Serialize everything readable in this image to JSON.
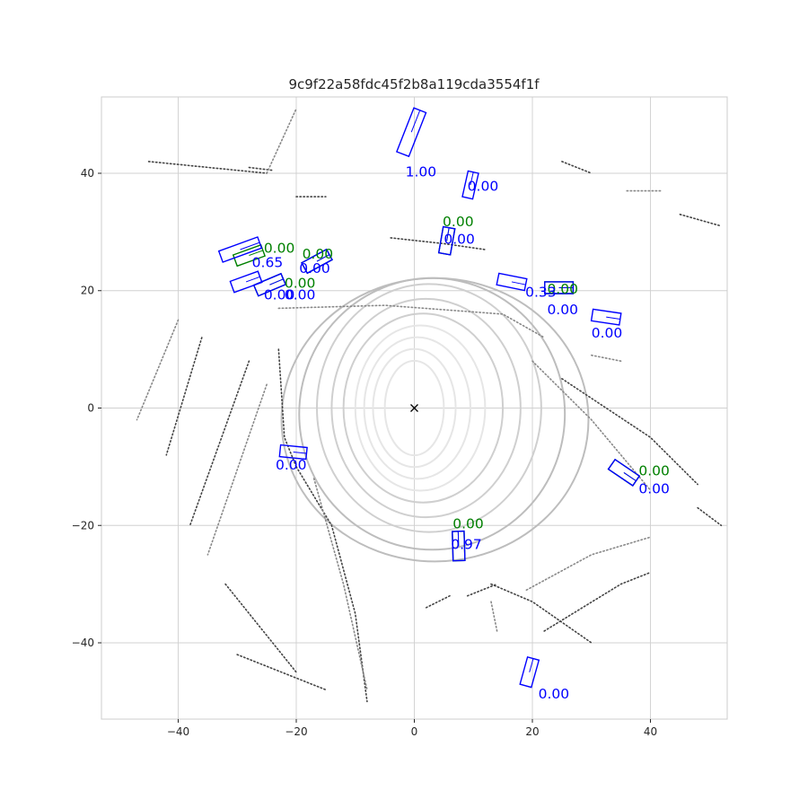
{
  "chart_data": {
    "type": "scatter",
    "title": "9c9f22a58fdc45f2b8a119cda3554f1f",
    "xlabel": "",
    "ylabel": "",
    "xlim": [
      -53,
      53
    ],
    "ylim": [
      -53,
      53
    ],
    "x_ticks": [
      -40,
      -20,
      0,
      20,
      40
    ],
    "y_ticks": [
      -40,
      -20,
      0,
      20,
      40
    ],
    "x_tick_labels": [
      "−40",
      "−20",
      "0",
      "20",
      "40"
    ],
    "y_tick_labels": [
      "−40",
      "−20",
      "0",
      "20",
      "40"
    ],
    "grid": true,
    "ego_marker": {
      "x": 0,
      "y": 0,
      "symbol": "×"
    },
    "colors": {
      "ground_truth": "#008000",
      "prediction": "#0000ff",
      "grid": "#d0d0d0",
      "points": "#333333"
    },
    "ground_truth_boxes": [
      {
        "cx": -28.0,
        "cy": 26.0,
        "w": 2.0,
        "l": 5.0,
        "yaw": 0.35
      },
      {
        "cx": -16.5,
        "cy": 25.0,
        "w": 2.0,
        "l": 4.8,
        "yaw": 0.5
      },
      {
        "cx": -24.5,
        "cy": 21.0,
        "w": 2.0,
        "l": 5.0,
        "yaw": 0.4
      },
      {
        "cx": 5.5,
        "cy": 28.5,
        "w": 2.0,
        "l": 4.5,
        "yaw": 1.4
      },
      {
        "cx": 24.5,
        "cy": 20.5,
        "w": 2.0,
        "l": 4.8,
        "yaw": 0.0
      },
      {
        "cx": 35.5,
        "cy": -11.0,
        "w": 2.0,
        "l": 5.0,
        "yaw": -0.6
      },
      {
        "cx": 7.5,
        "cy": -23.5,
        "w": 2.0,
        "l": 5.0,
        "yaw": 1.6
      }
    ],
    "predicted_boxes": [
      {
        "cx": -0.5,
        "cy": 47.0,
        "w": 2.2,
        "l": 8.0,
        "yaw": 1.2
      },
      {
        "cx": 9.5,
        "cy": 38.0,
        "w": 1.8,
        "l": 4.5,
        "yaw": 1.35
      },
      {
        "cx": -29.5,
        "cy": 27.0,
        "w": 2.0,
        "l": 7.0,
        "yaw": 0.35
      },
      {
        "cx": -16.5,
        "cy": 25.0,
        "w": 2.0,
        "l": 4.8,
        "yaw": 0.5
      },
      {
        "cx": -28.5,
        "cy": 21.5,
        "w": 2.0,
        "l": 5.0,
        "yaw": 0.35
      },
      {
        "cx": -24.5,
        "cy": 21.0,
        "w": 2.0,
        "l": 5.0,
        "yaw": 0.4
      },
      {
        "cx": 5.5,
        "cy": 28.5,
        "w": 2.0,
        "l": 4.5,
        "yaw": 1.4
      },
      {
        "cx": 16.5,
        "cy": 21.5,
        "w": 2.0,
        "l": 4.8,
        "yaw": -0.2
      },
      {
        "cx": 24.5,
        "cy": 20.5,
        "w": 2.0,
        "l": 4.8,
        "yaw": 0.0
      },
      {
        "cx": 32.5,
        "cy": 15.5,
        "w": 2.0,
        "l": 4.8,
        "yaw": -0.15
      },
      {
        "cx": -20.5,
        "cy": -7.5,
        "w": 2.0,
        "l": 4.5,
        "yaw": -0.1
      },
      {
        "cx": 35.5,
        "cy": -11.0,
        "w": 2.0,
        "l": 5.0,
        "yaw": -0.6
      },
      {
        "cx": 7.5,
        "cy": -23.5,
        "w": 2.0,
        "l": 5.0,
        "yaw": 1.6
      },
      {
        "cx": 19.5,
        "cy": -45.0,
        "w": 2.0,
        "l": 4.8,
        "yaw": 1.3
      }
    ],
    "score_labels": [
      {
        "text": "1.00",
        "x": -1.5,
        "y": 39.5,
        "series": "prediction"
      },
      {
        "text": "0.00",
        "x": 9.0,
        "y": 37.0,
        "series": "prediction"
      },
      {
        "text": "0.00",
        "x": 4.8,
        "y": 31.0,
        "series": "ground_truth"
      },
      {
        "text": "0.00",
        "x": 5.0,
        "y": 28.0,
        "series": "prediction"
      },
      {
        "text": "0.00",
        "x": -25.5,
        "y": 26.5,
        "series": "ground_truth"
      },
      {
        "text": "0.65",
        "x": -27.5,
        "y": 24.0,
        "series": "prediction"
      },
      {
        "text": "0.00",
        "x": -19.0,
        "y": 25.5,
        "series": "ground_truth"
      },
      {
        "text": "0.00",
        "x": -19.5,
        "y": 23.0,
        "series": "prediction"
      },
      {
        "text": "0.00",
        "x": -22.0,
        "y": 20.5,
        "series": "ground_truth"
      },
      {
        "text": "0.00",
        "x": -25.5,
        "y": 18.5,
        "series": "prediction"
      },
      {
        "text": "0.00",
        "x": -22.0,
        "y": 18.5,
        "series": "prediction"
      },
      {
        "text": "0.00",
        "x": 22.5,
        "y": 19.5,
        "series": "ground_truth"
      },
      {
        "text": "0.33",
        "x": 18.8,
        "y": 19.0,
        "series": "prediction"
      },
      {
        "text": "0.00",
        "x": 22.5,
        "y": 16.0,
        "series": "prediction"
      },
      {
        "text": "0.00",
        "x": 30.0,
        "y": 12.0,
        "series": "prediction"
      },
      {
        "text": "0.00",
        "x": -23.5,
        "y": -10.5,
        "series": "prediction"
      },
      {
        "text": "0.00",
        "x": 38.0,
        "y": -11.5,
        "series": "ground_truth"
      },
      {
        "text": "0.00",
        "x": 38.0,
        "y": -14.5,
        "series": "prediction"
      },
      {
        "text": "0.00",
        "x": 6.5,
        "y": -20.5,
        "series": "ground_truth"
      },
      {
        "text": "0.97",
        "x": 6.2,
        "y": -24.0,
        "series": "prediction"
      },
      {
        "text": "0.00",
        "x": 21.0,
        "y": -49.5,
        "series": "prediction"
      }
    ],
    "point_cloud": [
      {
        "type": "ring",
        "cx": 0,
        "cy": 0,
        "rx": 5,
        "ry": 8
      },
      {
        "type": "ring",
        "cx": 0,
        "cy": 0,
        "rx": 7,
        "ry": 10
      },
      {
        "type": "ring",
        "cx": 0.5,
        "cy": 0,
        "rx": 9,
        "ry": 12
      },
      {
        "type": "ring",
        "cx": 1,
        "cy": 0,
        "rx": 11,
        "ry": 14
      },
      {
        "type": "ring",
        "cx": 1.5,
        "cy": 0,
        "rx": 13.5,
        "ry": 16
      },
      {
        "type": "ring",
        "cx": 2,
        "cy": 0,
        "rx": 16,
        "ry": 18.5
      },
      {
        "type": "ring",
        "cx": 2.5,
        "cy": 0,
        "rx": 19,
        "ry": 21
      },
      {
        "type": "ring",
        "cx": 3,
        "cy": -1,
        "rx": 22.5,
        "ry": 23
      },
      {
        "type": "ring",
        "cx": 3.5,
        "cy": -2,
        "rx": 26,
        "ry": 24
      },
      {
        "type": "line",
        "pts": [
          [
            -23,
            17
          ],
          [
            -5,
            17.5
          ],
          [
            15,
            16
          ],
          [
            22,
            12
          ]
        ]
      },
      {
        "type": "line",
        "pts": [
          [
            -20,
            -10
          ],
          [
            -14,
            -20
          ],
          [
            -10,
            -35
          ],
          [
            -8,
            -50
          ]
        ]
      },
      {
        "type": "line",
        "pts": [
          [
            -23,
            10
          ],
          [
            -22,
            -5
          ],
          [
            -20,
            -10
          ]
        ]
      },
      {
        "type": "line",
        "pts": [
          [
            -17,
            -12
          ],
          [
            -12,
            -30
          ],
          [
            -8,
            -48
          ]
        ]
      },
      {
        "type": "line",
        "pts": [
          [
            -28,
            41
          ],
          [
            -24,
            40.5
          ]
        ]
      },
      {
        "type": "line",
        "pts": [
          [
            -45,
            42
          ],
          [
            -30,
            40.5
          ],
          [
            -25,
            40
          ]
        ]
      },
      {
        "type": "line",
        "pts": [
          [
            -25,
            40
          ],
          [
            -20,
            51
          ]
        ]
      },
      {
        "type": "line",
        "pts": [
          [
            -20,
            36
          ],
          [
            -15,
            36
          ]
        ]
      },
      {
        "type": "line",
        "pts": [
          [
            -4,
            29
          ],
          [
            5,
            28
          ],
          [
            12,
            27
          ]
        ]
      },
      {
        "type": "line",
        "pts": [
          [
            20,
            8
          ],
          [
            30,
            -2
          ],
          [
            40,
            -14
          ]
        ]
      },
      {
        "type": "line",
        "pts": [
          [
            25,
            5
          ],
          [
            40,
            -5
          ],
          [
            48,
            -13
          ]
        ]
      },
      {
        "type": "line",
        "pts": [
          [
            13,
            -30
          ],
          [
            20,
            -33
          ],
          [
            30,
            -40
          ]
        ]
      },
      {
        "type": "line",
        "pts": [
          [
            19,
            -31
          ],
          [
            30,
            -25
          ],
          [
            40,
            -22
          ]
        ]
      },
      {
        "type": "line",
        "pts": [
          [
            22,
            -38
          ],
          [
            35,
            -30
          ],
          [
            40,
            -28
          ]
        ]
      },
      {
        "type": "line",
        "pts": [
          [
            9,
            -32
          ],
          [
            14,
            -30
          ]
        ]
      },
      {
        "type": "line",
        "pts": [
          [
            -40,
            15
          ],
          [
            -47,
            -2
          ]
        ]
      },
      {
        "type": "line",
        "pts": [
          [
            -36,
            12
          ],
          [
            -42,
            -8
          ]
        ]
      },
      {
        "type": "line",
        "pts": [
          [
            -28,
            8
          ],
          [
            -38,
            -20
          ]
        ]
      },
      {
        "type": "line",
        "pts": [
          [
            -25,
            4
          ],
          [
            -35,
            -25
          ]
        ]
      },
      {
        "type": "line",
        "pts": [
          [
            -32,
            -30
          ],
          [
            -20,
            -45
          ]
        ]
      },
      {
        "type": "line",
        "pts": [
          [
            -30,
            -42
          ],
          [
            -15,
            -48
          ]
        ]
      },
      {
        "type": "line",
        "pts": [
          [
            30,
            9
          ],
          [
            35,
            8
          ]
        ]
      },
      {
        "type": "line",
        "pts": [
          [
            45,
            33
          ],
          [
            52,
            31
          ]
        ]
      },
      {
        "type": "line",
        "pts": [
          [
            25,
            42
          ],
          [
            30,
            40
          ]
        ]
      },
      {
        "type": "line",
        "pts": [
          [
            36,
            37
          ],
          [
            42,
            37
          ]
        ]
      },
      {
        "type": "line",
        "pts": [
          [
            48,
            -17
          ],
          [
            52,
            -20
          ]
        ]
      },
      {
        "type": "line",
        "pts": [
          [
            2,
            -34
          ],
          [
            6,
            -32
          ]
        ]
      },
      {
        "type": "line",
        "pts": [
          [
            13,
            -33
          ],
          [
            14,
            -38
          ]
        ]
      }
    ]
  }
}
